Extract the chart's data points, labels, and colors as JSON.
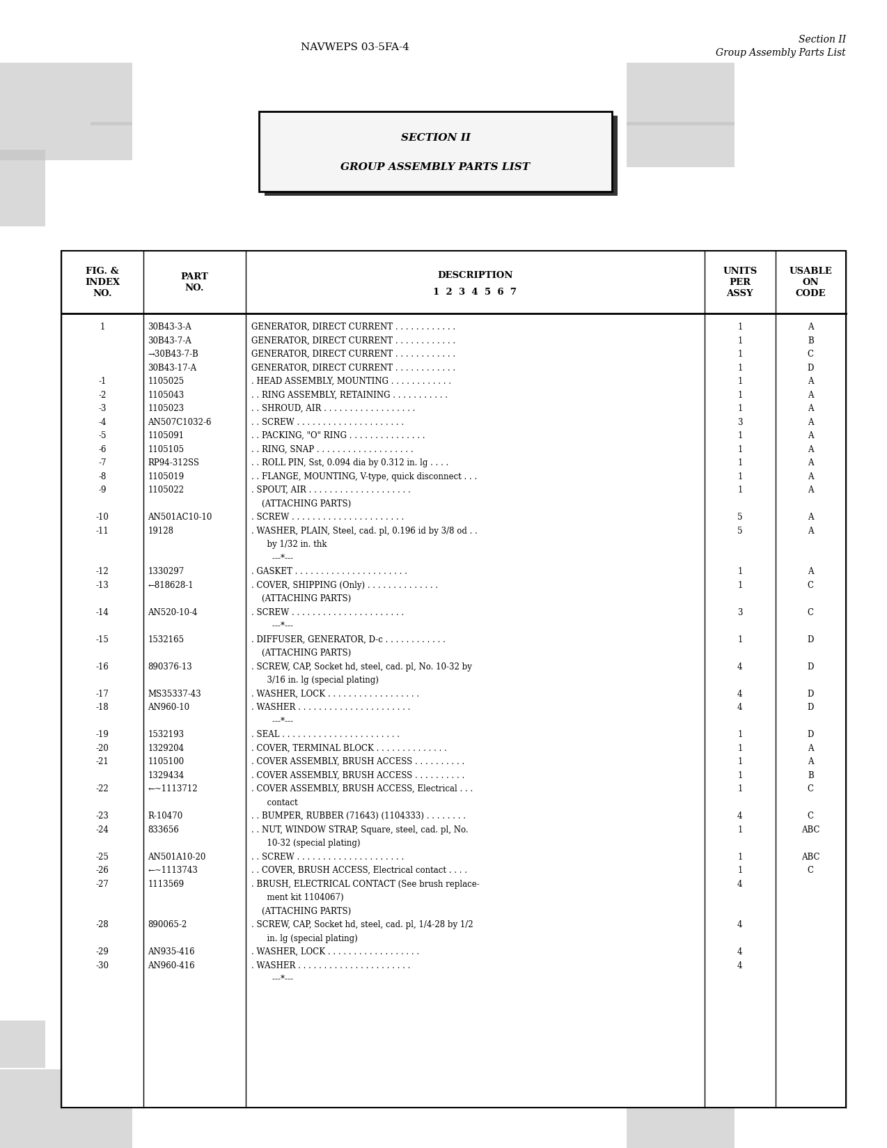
{
  "page_bg": "#ffffff",
  "header_left": "NAVWEPS 03-5FA-4",
  "header_right1": "Section II",
  "header_right2": "Group Assembly Parts List",
  "section_title1": "SECTION II",
  "section_title2": "GROUP ASSEMBLY PARTS LIST",
  "rows": [
    {
      "fig": "1",
      "part": "30B43-3-A",
      "desc": "GENERATOR, DIRECT CURRENT . . . . . . . . . . . .",
      "units": "1",
      "usable": "A"
    },
    {
      "fig": "",
      "part": "30B43-7-A",
      "desc": "GENERATOR, DIRECT CURRENT . . . . . . . . . . . .",
      "units": "1",
      "usable": "B"
    },
    {
      "fig": "",
      "part": "→30B43-7-B",
      "desc": "GENERATOR, DIRECT CURRENT . . . . . . . . . . . .",
      "units": "1",
      "usable": "C"
    },
    {
      "fig": "",
      "part": "30B43-17-A",
      "desc": "GENERATOR, DIRECT CURRENT . . . . . . . . . . . .",
      "units": "1",
      "usable": "D"
    },
    {
      "fig": "-1",
      "part": "1105025",
      "desc": ". HEAD ASSEMBLY, MOUNTING . . . . . . . . . . . .",
      "units": "1",
      "usable": "A"
    },
    {
      "fig": "-2",
      "part": "1105043",
      "desc": ". . RING ASSEMBLY, RETAINING . . . . . . . . . . .",
      "units": "1",
      "usable": "A"
    },
    {
      "fig": "-3",
      "part": "1105023",
      "desc": ". . SHROUD, AIR . . . . . . . . . . . . . . . . . .",
      "units": "1",
      "usable": "A"
    },
    {
      "fig": "-4",
      "part": "AN507C1032-6",
      "desc": ". . SCREW . . . . . . . . . . . . . . . . . . . . .",
      "units": "3",
      "usable": "A"
    },
    {
      "fig": "-5",
      "part": "1105091",
      "desc": ". . PACKING, \"O\" RING . . . . . . . . . . . . . . .",
      "units": "1",
      "usable": "A"
    },
    {
      "fig": "-6",
      "part": "1105105",
      "desc": ". . RING, SNAP . . . . . . . . . . . . . . . . . . .",
      "units": "1",
      "usable": "A"
    },
    {
      "fig": "-7",
      "part": "RP94-312SS",
      "desc": ". . ROLL PIN, Sst, 0.094 dia by 0.312 in. lg . . . .",
      "units": "1",
      "usable": "A"
    },
    {
      "fig": "-8",
      "part": "1105019",
      "desc": ". . FLANGE, MOUNTING, V-type, quick disconnect . . .",
      "units": "1",
      "usable": "A"
    },
    {
      "fig": "-9",
      "part": "1105022",
      "desc": ". SPOUT, AIR . . . . . . . . . . . . . . . . . . . .",
      "units": "1",
      "usable": "A"
    },
    {
      "fig": "",
      "part": "",
      "desc": "    (ATTACHING PARTS)",
      "units": "",
      "usable": ""
    },
    {
      "fig": "-10",
      "part": "AN501AC10-10",
      "desc": ". SCREW . . . . . . . . . . . . . . . . . . . . . .",
      "units": "5",
      "usable": "A"
    },
    {
      "fig": "-11",
      "part": "19128",
      "desc": ". WASHER, PLAIN, Steel, cad. pl, 0.196 id by 3/8 od . .",
      "units": "5",
      "usable": "A"
    },
    {
      "fig": "",
      "part": "",
      "desc": "      by 1/32 in. thk",
      "units": "",
      "usable": ""
    },
    {
      "fig": "",
      "part": "",
      "desc": "        ---*---",
      "units": "",
      "usable": ""
    },
    {
      "fig": "-12",
      "part": "1330297",
      "desc": ". GASKET . . . . . . . . . . . . . . . . . . . . . .",
      "units": "1",
      "usable": "A"
    },
    {
      "fig": "-13",
      "part": "←818628-1",
      "desc": ". COVER, SHIPPING (Only) . . . . . . . . . . . . . .",
      "units": "1",
      "usable": "C"
    },
    {
      "fig": "",
      "part": "",
      "desc": "    (ATTACHING PARTS)",
      "units": "",
      "usable": ""
    },
    {
      "fig": "-14",
      "part": "AN520-10-4",
      "desc": ". SCREW . . . . . . . . . . . . . . . . . . . . . .",
      "units": "3",
      "usable": "C"
    },
    {
      "fig": "",
      "part": "",
      "desc": "        ---*---",
      "units": "",
      "usable": ""
    },
    {
      "fig": "-15",
      "part": "1532165",
      "desc": ". DIFFUSER, GENERATOR, D-c . . . . . . . . . . . .",
      "units": "1",
      "usable": "D"
    },
    {
      "fig": "",
      "part": "",
      "desc": "    (ATTACHING PARTS)",
      "units": "",
      "usable": ""
    },
    {
      "fig": "-16",
      "part": "890376-13",
      "desc": ". SCREW, CAP, Socket hd, steel, cad. pl, No. 10-32 by",
      "units": "4",
      "usable": "D"
    },
    {
      "fig": "",
      "part": "",
      "desc": "      3/16 in. lg (special plating)",
      "units": "",
      "usable": ""
    },
    {
      "fig": "-17",
      "part": "MS35337-43",
      "desc": ". WASHER, LOCK . . . . . . . . . . . . . . . . . .",
      "units": "4",
      "usable": "D"
    },
    {
      "fig": "-18",
      "part": "AN960-10",
      "desc": ". WASHER . . . . . . . . . . . . . . . . . . . . . .",
      "units": "4",
      "usable": "D"
    },
    {
      "fig": "",
      "part": "",
      "desc": "        ---*---",
      "units": "",
      "usable": ""
    },
    {
      "fig": "-19",
      "part": "1532193",
      "desc": ". SEAL . . . . . . . . . . . . . . . . . . . . . . .",
      "units": "1",
      "usable": "D"
    },
    {
      "fig": "-20",
      "part": "1329204",
      "desc": ". COVER, TERMINAL BLOCK . . . . . . . . . . . . . .",
      "units": "1",
      "usable": "A"
    },
    {
      "fig": "-21",
      "part": "1105100",
      "desc": ". COVER ASSEMBLY, BRUSH ACCESS . . . . . . . . . .",
      "units": "1",
      "usable": "A"
    },
    {
      "fig": "",
      "part": "1329434",
      "desc": ". COVER ASSEMBLY, BRUSH ACCESS . . . . . . . . . .",
      "units": "1",
      "usable": "B"
    },
    {
      "fig": "-22",
      "part": "←~1113712",
      "desc": ". COVER ASSEMBLY, BRUSH ACCESS, Electrical . . .",
      "units": "1",
      "usable": "C"
    },
    {
      "fig": "",
      "part": "",
      "desc": "      contact",
      "units": "",
      "usable": ""
    },
    {
      "fig": "-23",
      "part": "R-10470",
      "desc": ". . BUMPER, RUBBER (71643) (1104333) . . . . . . . .",
      "units": "4",
      "usable": "C"
    },
    {
      "fig": "-24",
      "part": "833656",
      "desc": ". . NUT, WINDOW STRAP, Square, steel, cad. pl, No.",
      "units": "1",
      "usable": "ABC"
    },
    {
      "fig": "",
      "part": "",
      "desc": "      10-32 (special plating)",
      "units": "",
      "usable": ""
    },
    {
      "fig": "-25",
      "part": "AN501A10-20",
      "desc": ". . SCREW . . . . . . . . . . . . . . . . . . . . .",
      "units": "1",
      "usable": "ABC"
    },
    {
      "fig": "-26",
      "part": "←~1113743",
      "desc": ". . COVER, BRUSH ACCESS, Electrical contact . . . .",
      "units": "1",
      "usable": "C"
    },
    {
      "fig": "-27",
      "part": "1113569",
      "desc": ". BRUSH, ELECTRICAL CONTACT (See brush replace-",
      "units": "4",
      "usable": ""
    },
    {
      "fig": "",
      "part": "",
      "desc": "      ment kit 1104067)",
      "units": "",
      "usable": ""
    },
    {
      "fig": "",
      "part": "",
      "desc": "    (ATTACHING PARTS)",
      "units": "",
      "usable": ""
    },
    {
      "fig": "-28",
      "part": "890065-2",
      "desc": ". SCREW, CAP, Socket hd, steel, cad. pl, 1/4-28 by 1/2",
      "units": "4",
      "usable": ""
    },
    {
      "fig": "",
      "part": "",
      "desc": "      in. lg (special plating)",
      "units": "",
      "usable": ""
    },
    {
      "fig": "-29",
      "part": "AN935-416",
      "desc": ". WASHER, LOCK . . . . . . . . . . . . . . . . . .",
      "units": "4",
      "usable": ""
    },
    {
      "fig": "-30",
      "part": "AN960-416",
      "desc": ". WASHER . . . . . . . . . . . . . . . . . . . . . .",
      "units": "4",
      "usable": ""
    },
    {
      "fig": "",
      "part": "",
      "desc": "        ---*---",
      "units": "",
      "usable": ""
    }
  ]
}
